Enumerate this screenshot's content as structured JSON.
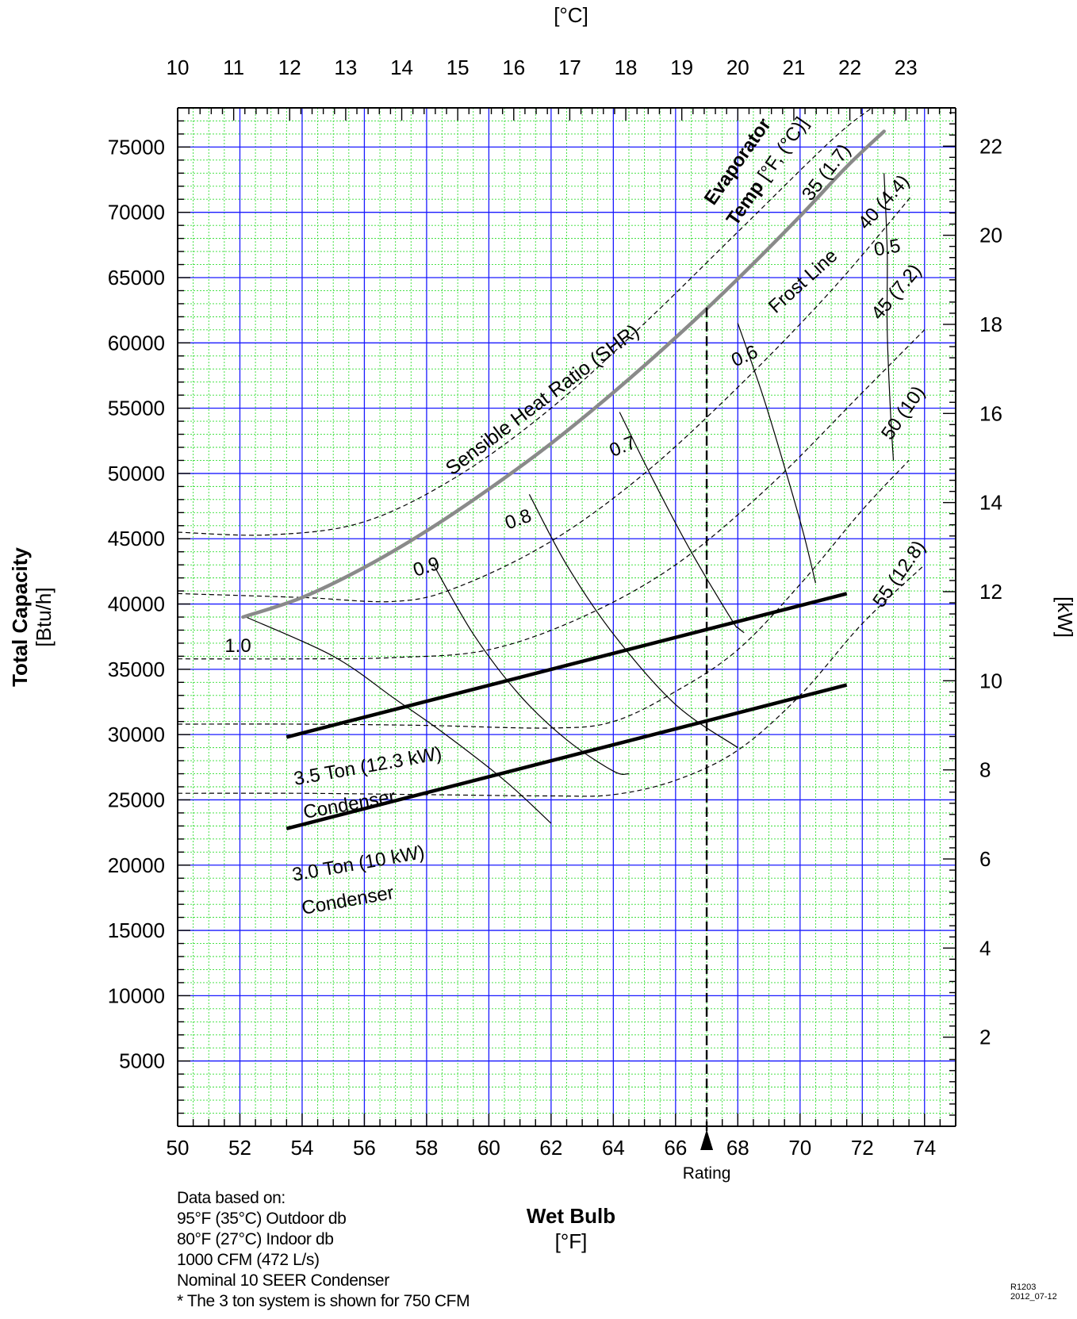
{
  "chart_data": {
    "type": "line",
    "title": "",
    "xlabel": "Wet Bulb",
    "xunit": "[°F]",
    "x2unit": "[°C]",
    "ylabel": "Total Capacity",
    "yunit": "[Btu/h]",
    "y2unit": "[kW]",
    "xlim": [
      50,
      75
    ],
    "ylim": [
      0,
      78000
    ],
    "x_ticks": [
      50,
      52,
      54,
      56,
      58,
      60,
      62,
      64,
      66,
      68,
      70,
      72,
      74
    ],
    "x2_ticks": [
      10,
      11,
      12,
      13,
      14,
      15,
      16,
      17,
      18,
      19,
      20,
      21,
      22,
      23
    ],
    "y_ticks": [
      5000,
      10000,
      15000,
      20000,
      25000,
      30000,
      35000,
      40000,
      45000,
      50000,
      55000,
      60000,
      65000,
      70000,
      75000
    ],
    "y2_ticks": [
      2,
      4,
      6,
      8,
      10,
      12,
      14,
      16,
      18,
      20,
      22
    ],
    "grid": true,
    "rating": {
      "x": 67,
      "label": "Rating"
    },
    "frost_line": {
      "label": "Frost Line",
      "points": [
        [
          52.1,
          39000
        ],
        [
          54,
          40500
        ],
        [
          56,
          42800
        ],
        [
          58,
          45600
        ],
        [
          60,
          48800
        ],
        [
          62,
          52300
        ],
        [
          64,
          56200
        ],
        [
          66,
          60400
        ],
        [
          68,
          64900
        ],
        [
          70,
          69700
        ],
        [
          71.5,
          73500
        ],
        [
          72.7,
          76200
        ]
      ]
    },
    "evaporator_temp": {
      "label_line1": "Evaporator",
      "label_line2": "Temp [°F, (°C)]",
      "series": [
        {
          "name": "35 (1.7)",
          "points": [
            [
              50,
              45500
            ],
            [
              53,
              45300
            ],
            [
              56,
              46300
            ],
            [
              59,
              49800
            ],
            [
              62,
              55000
            ],
            [
              65,
              61500
            ],
            [
              68,
              68500
            ],
            [
              71,
              75500
            ],
            [
              72.3,
              78000
            ]
          ]
        },
        {
          "name": "40 (4.4)",
          "points": [
            [
              50,
              40800
            ],
            [
              54,
              40500
            ],
            [
              57,
              40200
            ],
            [
              59,
              41300
            ],
            [
              62,
              44800
            ],
            [
              65,
              50000
            ],
            [
              68,
              56600
            ],
            [
              71,
              64000
            ],
            [
              73.6,
              71300
            ]
          ]
        },
        {
          "name": "45 (7.2)",
          "points": [
            [
              50,
              35800
            ],
            [
              54,
              35800
            ],
            [
              57,
              35900
            ],
            [
              60,
              36500
            ],
            [
              63,
              39000
            ],
            [
              66,
              43000
            ],
            [
              69,
              49000
            ],
            [
              72,
              56200
            ],
            [
              74,
              61000
            ]
          ]
        },
        {
          "name": "50 (10)",
          "points": [
            [
              50,
              30800
            ],
            [
              54,
              30800
            ],
            [
              58,
              30700
            ],
            [
              62,
              30500
            ],
            [
              64,
              31000
            ],
            [
              66,
              33300
            ],
            [
              68,
              36500
            ],
            [
              70,
              41500
            ],
            [
              72,
              47200
            ],
            [
              73.5,
              51000
            ]
          ]
        },
        {
          "name": "55 (12.8)",
          "points": [
            [
              50,
              25500
            ],
            [
              54,
              25500
            ],
            [
              58,
              25400
            ],
            [
              62,
              25300
            ],
            [
              64,
              25400
            ],
            [
              66,
              26500
            ],
            [
              68,
              28800
            ],
            [
              70,
              33000
            ],
            [
              72,
              38500
            ],
            [
              74,
              43000
            ]
          ]
        }
      ]
    },
    "shr": {
      "label": "Sensible Heat Ratio (SHR)",
      "series": [
        {
          "name": "1.0",
          "points": [
            [
              52.2,
              39000
            ],
            [
              55,
              36000
            ],
            [
              57,
              32700
            ],
            [
              58.5,
              30200
            ],
            [
              60.5,
              26500
            ],
            [
              62,
              23200
            ]
          ]
        },
        {
          "name": "0.9",
          "points": [
            [
              58.2,
              43100
            ],
            [
              59.5,
              37700
            ],
            [
              61,
              33000
            ],
            [
              62.5,
              29600
            ],
            [
              64,
              27200
            ],
            [
              64.5,
              27000
            ]
          ]
        },
        {
          "name": "0.8",
          "points": [
            [
              61.3,
              48400
            ],
            [
              62.5,
              43000
            ],
            [
              64,
              37700
            ],
            [
              66,
              32300
            ],
            [
              68,
              29000
            ]
          ]
        },
        {
          "name": "0.7",
          "points": [
            [
              64.2,
              54700
            ],
            [
              65.3,
              49400
            ],
            [
              66.5,
              44000
            ],
            [
              67.8,
              38800
            ],
            [
              68,
              38200
            ],
            [
              68.2,
              37800
            ]
          ]
        },
        {
          "name": "0.6",
          "points": [
            [
              68,
              61500
            ],
            [
              68.8,
              56000
            ],
            [
              69.5,
              50500
            ],
            [
              70.1,
              45500
            ],
            [
              70.5,
              41600
            ]
          ]
        },
        {
          "name": "0.5",
          "points": [
            [
              72.7,
              73000
            ],
            [
              72.8,
              67000
            ],
            [
              72.8,
              61000
            ],
            [
              72.9,
              55000
            ],
            [
              73,
              51000
            ]
          ]
        }
      ]
    },
    "condensers": [
      {
        "name": "3.5 Ton (12.3 kW)",
        "label_line2": "Condenser",
        "points": [
          [
            53.5,
            29800
          ],
          [
            71.5,
            40800
          ]
        ]
      },
      {
        "name": "3.0 Ton (10 kW)",
        "label_line2": "Condenser",
        "points": [
          [
            53.5,
            22800
          ],
          [
            71.5,
            33800
          ]
        ]
      }
    ]
  },
  "notes": {
    "heading": "Data based on:",
    "lines": [
      "95°F (35°C) Outdoor db",
      "80°F (27°C) Indoor db",
      "1000 CFM (472 L/s)",
      "Nominal 10 SEER Condenser",
      "* The 3 ton system is shown for 750 CFM"
    ]
  },
  "doc_code": {
    "id": "R1203",
    "date": "2012_07-12"
  }
}
